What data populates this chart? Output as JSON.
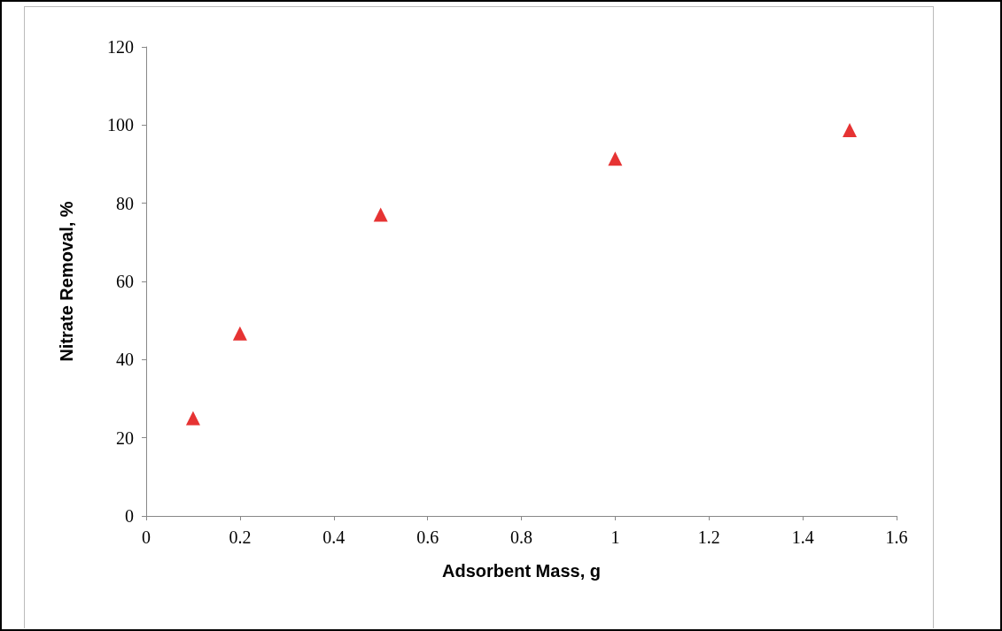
{
  "chart_data": {
    "type": "scatter",
    "xlabel": "Adsorbent Mass, g",
    "ylabel": "Nitrate Removal, %",
    "x": [
      0.1,
      0.2,
      0.5,
      1,
      1.5
    ],
    "series": [
      {
        "color": "#e00000",
        "values": [
          25,
          46.7,
          77.1,
          91.4,
          98.7
        ]
      }
    ],
    "xlim": [
      0,
      1.6
    ],
    "xticks": [
      0,
      0.2,
      0.4,
      0.6,
      0.8,
      1,
      1.2,
      1.4,
      1.6
    ],
    "ylim": [
      0,
      120
    ],
    "yticks": [
      0,
      20,
      40,
      60,
      80,
      100,
      120
    ],
    "grid": false,
    "marker": "triangle"
  }
}
